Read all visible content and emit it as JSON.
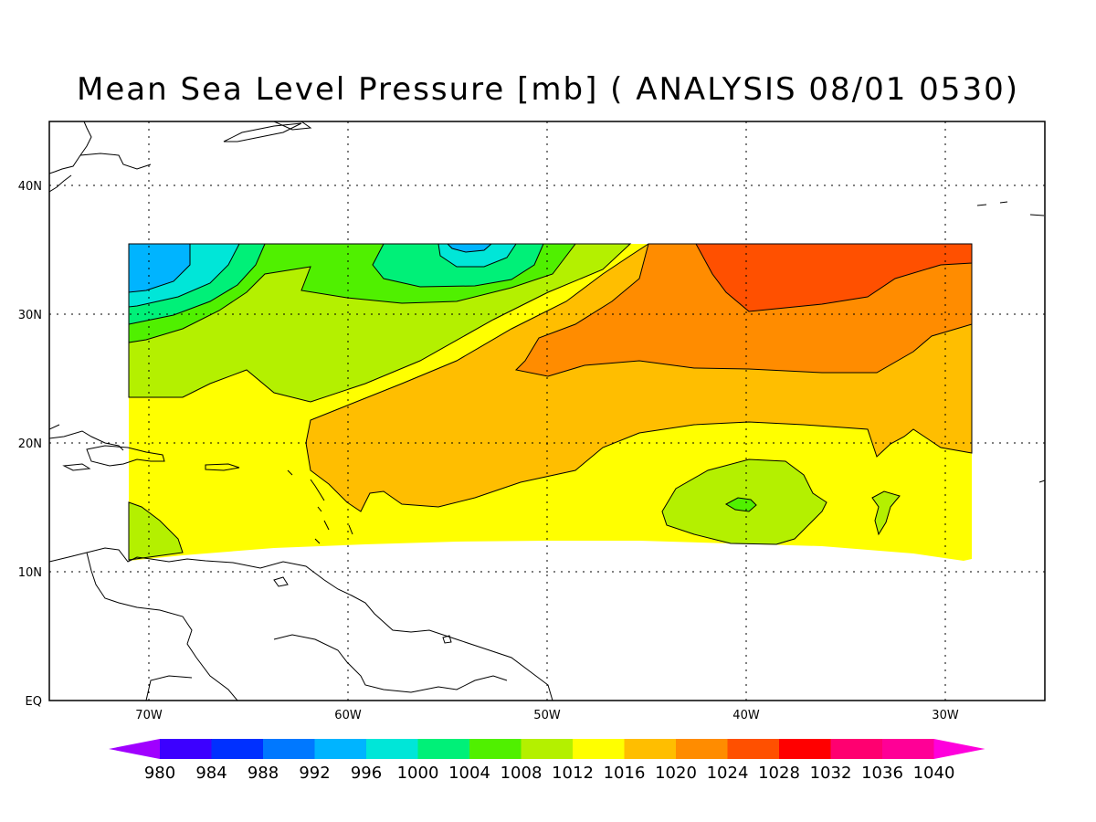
{
  "title": "Mean Sea Level Pressure [mb] ( ANALYSIS 08/01 0530)",
  "map": {
    "lon_range": [
      -75,
      -25
    ],
    "lat_range": [
      0,
      45
    ],
    "lon_ticks": [
      "70W",
      "60W",
      "50W",
      "40W",
      "30W"
    ],
    "lat_ticks": [
      "EQ",
      "10N",
      "20N",
      "30N",
      "40N"
    ],
    "grid": "dotted",
    "field_extent": {
      "lon": [
        -71,
        -29
      ],
      "lat": [
        11,
        35.5
      ]
    },
    "features": [
      {
        "kind": "low",
        "lon": -69,
        "lat": 34,
        "min_mb": 996
      },
      {
        "kind": "low",
        "lon": -53.5,
        "lat": 35,
        "min_mb": 1000
      },
      {
        "kind": "high",
        "lon": -38,
        "lat": 33,
        "max_mb": 1028
      },
      {
        "kind": "low",
        "lon": -40,
        "lat": 15.3,
        "min_mb": 1008
      }
    ]
  },
  "colorbar": {
    "labels": [
      "980",
      "984",
      "988",
      "992",
      "996",
      "1000",
      "1004",
      "1008",
      "1012",
      "1016",
      "1020",
      "1024",
      "1028",
      "1032",
      "1036",
      "1040"
    ],
    "colors": [
      "#a000ff",
      "#3c00ff",
      "#0030ff",
      "#0078ff",
      "#00b4ff",
      "#00e6d8",
      "#00f078",
      "#50f000",
      "#b4f000",
      "#ffff00",
      "#ffbe00",
      "#ff8c00",
      "#ff5000",
      "#ff0000",
      "#ff0070",
      "#ff0096",
      "#ff00dc"
    ]
  }
}
